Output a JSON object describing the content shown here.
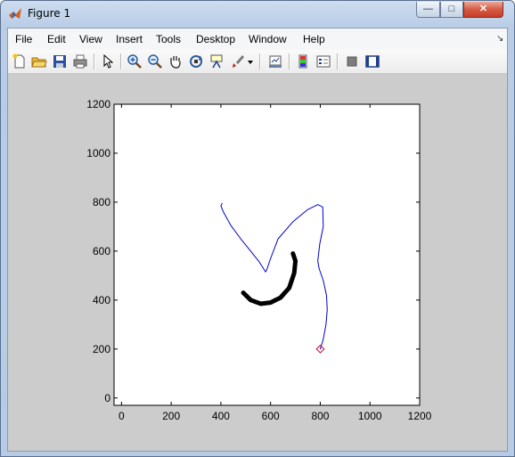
{
  "window": {
    "title": "Figure 1",
    "minimize_label": "—",
    "maximize_label": "□",
    "close_label": "✕"
  },
  "menubar": {
    "items": [
      "File",
      "Edit",
      "View",
      "Insert",
      "Tools",
      "Desktop",
      "Window",
      "Help"
    ],
    "dock_arrow": "↘"
  },
  "toolbar": {
    "icons": [
      "new-figure-icon",
      "open-file-icon",
      "save-icon",
      "print-icon",
      "arrow-pointer-icon",
      "zoom-in-icon",
      "zoom-out-icon",
      "pan-hand-icon",
      "rotate-3d-icon",
      "data-cursor-icon",
      "brush-icon",
      "brush-dropdown-icon",
      "link-plot-icon",
      "colorbar-icon",
      "legend-icon",
      "hide-plot-tools-icon",
      "show-plot-tools-icon"
    ]
  },
  "chart_data": {
    "type": "line",
    "title": "",
    "xlabel": "",
    "ylabel": "",
    "xlim": [
      -30,
      1200
    ],
    "ylim": [
      -30,
      1200
    ],
    "xticks": [
      0,
      200,
      400,
      600,
      800,
      1000,
      1200
    ],
    "yticks": [
      0,
      200,
      400,
      600,
      800,
      1000,
      1200
    ],
    "grid": false,
    "series": [
      {
        "style": "thin-blue",
        "color": "#0000cc",
        "x": [
          405,
          400,
          410,
          440,
          480,
          520,
          555,
          580,
          585,
          600,
          630,
          690,
          750,
          790,
          810,
          812,
          798,
          790,
          795,
          812,
          825,
          828,
          823,
          812,
          800
        ],
        "y": [
          795,
          785,
          760,
          705,
          650,
          600,
          555,
          515,
          525,
          570,
          650,
          720,
          770,
          790,
          780,
          700,
          630,
          560,
          530,
          480,
          420,
          360,
          300,
          240,
          200
        ]
      },
      {
        "style": "thick-black",
        "color": "#000000",
        "x": [
          490,
          520,
          560,
          600,
          640,
          675,
          695,
          700,
          690
        ],
        "y": [
          430,
          400,
          385,
          390,
          410,
          450,
          510,
          560,
          590
        ]
      },
      {
        "style": "red-marker",
        "color": "#cc0033",
        "x": [
          800
        ],
        "y": [
          200
        ]
      }
    ]
  }
}
